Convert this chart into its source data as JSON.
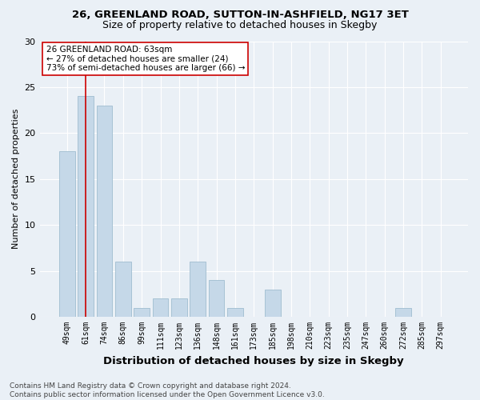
{
  "title1": "26, GREENLAND ROAD, SUTTON-IN-ASHFIELD, NG17 3ET",
  "title2": "Size of property relative to detached houses in Skegby",
  "xlabel": "Distribution of detached houses by size in Skegby",
  "ylabel": "Number of detached properties",
  "categories": [
    "49sqm",
    "61sqm",
    "74sqm",
    "86sqm",
    "99sqm",
    "111sqm",
    "123sqm",
    "136sqm",
    "148sqm",
    "161sqm",
    "173sqm",
    "185sqm",
    "198sqm",
    "210sqm",
    "223sqm",
    "235sqm",
    "247sqm",
    "260sqm",
    "272sqm",
    "285sqm",
    "297sqm"
  ],
  "values": [
    18,
    24,
    23,
    6,
    1,
    2,
    2,
    6,
    4,
    1,
    0,
    3,
    0,
    0,
    0,
    0,
    0,
    0,
    1,
    0,
    0
  ],
  "bar_color": "#c5d8e8",
  "bar_edgecolor": "#a0bdd0",
  "vline_x": 1,
  "vline_color": "#cc0000",
  "annotation_text": "26 GREENLAND ROAD: 63sqm\n← 27% of detached houses are smaller (24)\n73% of semi-detached houses are larger (66) →",
  "annotation_box_edgecolor": "#cc0000",
  "annotation_box_facecolor": "#ffffff",
  "ylim": [
    0,
    30
  ],
  "yticks": [
    0,
    5,
    10,
    15,
    20,
    25,
    30
  ],
  "background_color": "#eaf0f6",
  "plot_bg_color": "#eaf0f6",
  "footer": "Contains HM Land Registry data © Crown copyright and database right 2024.\nContains public sector information licensed under the Open Government Licence v3.0.",
  "title1_fontsize": 9.5,
  "title2_fontsize": 9,
  "xlabel_fontsize": 9.5,
  "ylabel_fontsize": 8,
  "annot_fontsize": 7.5,
  "footer_fontsize": 6.5,
  "tick_fontsize": 7,
  "grid_color": "#ffffff"
}
